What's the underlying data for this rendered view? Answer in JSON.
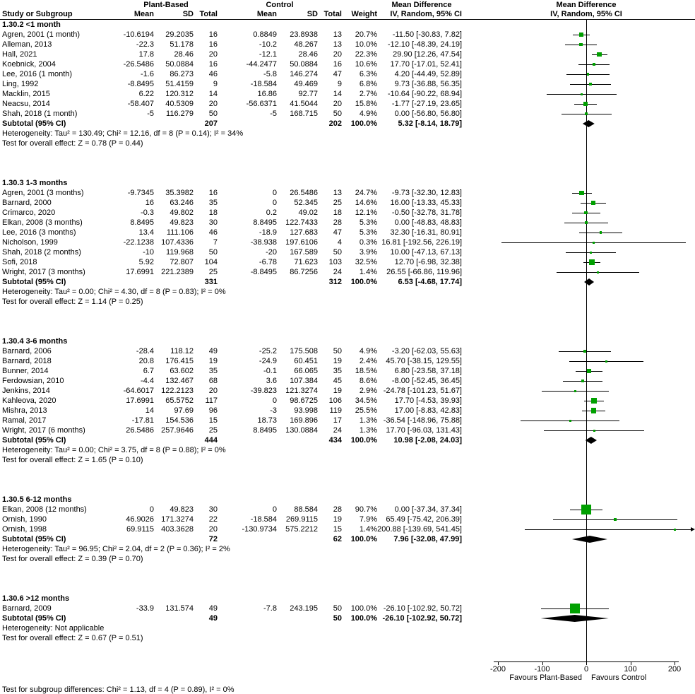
{
  "header": {
    "col_study": "Study or Subgroup",
    "group1": "Plant-Based",
    "group2": "Control",
    "mean": "Mean",
    "sd": "SD",
    "total": "Total",
    "weight": "Weight",
    "md": "Mean Difference",
    "method": "IV, Random, 95% CI"
  },
  "strings": {
    "subtotal_label": "Subtotal (95% CI)"
  },
  "axis": {
    "ticks": [
      -200,
      -100,
      0,
      100,
      200
    ],
    "min": -200,
    "max": 200,
    "favours_left": "Favours Plant-Based",
    "favours_right": "Favours Control"
  },
  "footer": "Test for subgroup differences: Chi² = 1.13, df = 4 (P = 0.89), I² = 0%",
  "colors": {
    "square": "#00a000",
    "diamond": "#000000"
  },
  "chart_data": {
    "type": "forest",
    "effect_measure": "Mean Difference, IV, Random, 95% CI",
    "columns_order": [
      "study",
      "mean1",
      "sd1",
      "n1",
      "mean2",
      "sd2",
      "n2",
      "weight",
      "est",
      "lo",
      "hi"
    ],
    "subgroups": [
      {
        "title": "1.30.2 <1 month",
        "studies": [
          [
            "Agren, 2001 (1 month)",
            "-10.6194",
            "29.2035",
            "16",
            "0.8849",
            "23.8938",
            "13",
            "20.7%",
            -11.5,
            -30.83,
            7.82
          ],
          [
            "Alleman, 2013",
            "-22.3",
            "51.178",
            "16",
            "-10.2",
            "48.267",
            "13",
            "10.0%",
            -12.1,
            -48.39,
            24.19
          ],
          [
            "Hall, 2021",
            "17.8",
            "28.46",
            "20",
            "-12.1",
            "28.46",
            "20",
            "22.3%",
            29.9,
            12.26,
            47.54
          ],
          [
            "Koebnick, 2004",
            "-26.5486",
            "50.0884",
            "16",
            "-44.2477",
            "50.0884",
            "16",
            "10.6%",
            17.7,
            -17.01,
            52.41
          ],
          [
            "Lee, 2016 (1 month)",
            "-1.6",
            "86.273",
            "46",
            "-5.8",
            "146.274",
            "47",
            "6.3%",
            4.2,
            -44.49,
            52.89
          ],
          [
            "Ling, 1992",
            "-8.8495",
            "51.4159",
            "9",
            "-18.584",
            "49.469",
            "9",
            "6.8%",
            9.73,
            -36.88,
            56.35
          ],
          [
            "Macklin, 2015",
            "6.22",
            "120.312",
            "14",
            "16.86",
            "92.77",
            "14",
            "2.7%",
            -10.64,
            -90.22,
            68.94
          ],
          [
            "Neacsu, 2014",
            "-58.407",
            "40.5309",
            "20",
            "-56.6371",
            "41.5044",
            "20",
            "15.8%",
            -1.77,
            -27.19,
            23.65
          ],
          [
            "Shah, 2018 (1 month)",
            "-5",
            "116.279",
            "50",
            "-5",
            "168.715",
            "50",
            "4.9%",
            0,
            -56.8,
            56.8
          ]
        ],
        "subtotal": {
          "n1": "207",
          "n2": "202",
          "weight": "100.0%",
          "est": 5.32,
          "lo": -8.14,
          "hi": 18.79
        },
        "heterogeneity": "Heterogeneity: Tau² = 130.49; Chi² = 12.16, df = 8 (P = 0.14); I² = 34%",
        "test": "Test for overall effect: Z = 0.78 (P = 0.44)"
      },
      {
        "title": "1.30.3 1-3 months",
        "studies": [
          [
            "Agren, 2001 (3 months)",
            "-9.7345",
            "35.3982",
            "16",
            "0",
            "26.5486",
            "13",
            "24.7%",
            -9.73,
            -32.3,
            12.83
          ],
          [
            "Barnard, 2000",
            "16",
            "63.246",
            "35",
            "0",
            "52.345",
            "25",
            "14.6%",
            16,
            -13.33,
            45.33
          ],
          [
            "Crimarco, 2020",
            "-0.3",
            "49.802",
            "18",
            "0.2",
            "49.02",
            "18",
            "12.1%",
            -0.5,
            -32.78,
            31.78
          ],
          [
            "Elkan, 2008 (3 months)",
            "8.8495",
            "49.823",
            "30",
            "8.8495",
            "122.7433",
            "28",
            "5.3%",
            0,
            -48.83,
            48.83
          ],
          [
            "Lee, 2016 (3 months)",
            "13.4",
            "111.106",
            "46",
            "-18.9",
            "127.683",
            "47",
            "5.3%",
            32.3,
            -16.31,
            80.91
          ],
          [
            "Nicholson, 1999",
            "-22.1238",
            "107.4336",
            "7",
            "-38.938",
            "197.6106",
            "4",
            "0.3%",
            16.81,
            -192.56,
            226.19
          ],
          [
            "Shah, 2018 (2 months)",
            "-10",
            "119.968",
            "50",
            "-20",
            "167.589",
            "50",
            "3.9%",
            10,
            -47.13,
            67.13
          ],
          [
            "Sofi, 2018",
            "5.92",
            "72.807",
            "104",
            "-6.78",
            "71.623",
            "103",
            "32.5%",
            12.7,
            -6.98,
            32.38
          ],
          [
            "Wright, 2017 (3 months)",
            "17.6991",
            "221.2389",
            "25",
            "-8.8495",
            "86.7256",
            "24",
            "1.4%",
            26.55,
            -66.86,
            119.96
          ]
        ],
        "subtotal": {
          "n1": "331",
          "n2": "312",
          "weight": "100.0%",
          "est": 6.53,
          "lo": -4.68,
          "hi": 17.74
        },
        "heterogeneity": "Heterogeneity: Tau² = 0.00; Chi² = 4.30, df = 8 (P = 0.83); I² = 0%",
        "test": "Test for overall effect: Z = 1.14 (P = 0.25)"
      },
      {
        "title": "1.30.4 3-6 months",
        "studies": [
          [
            "Barnard, 2006",
            "-28.4",
            "118.12",
            "49",
            "-25.2",
            "175.508",
            "50",
            "4.9%",
            -3.2,
            -62.03,
            55.63
          ],
          [
            "Barnard, 2018",
            "20.8",
            "176.415",
            "19",
            "-24.9",
            "60.451",
            "19",
            "2.4%",
            45.7,
            -38.15,
            129.55
          ],
          [
            "Bunner, 2014",
            "6.7",
            "63.602",
            "35",
            "-0.1",
            "66.065",
            "35",
            "18.5%",
            6.8,
            -23.58,
            37.18
          ],
          [
            "Ferdowsian, 2010",
            "-4.4",
            "132.467",
            "68",
            "3.6",
            "107.384",
            "45",
            "8.6%",
            -8,
            -52.45,
            36.45
          ],
          [
            "Jenkins, 2014",
            "-64.6017",
            "122.2123",
            "20",
            "-39.823",
            "121.3274",
            "19",
            "2.9%",
            -24.78,
            -101.23,
            51.67
          ],
          [
            "Kahleova, 2020",
            "17.6991",
            "65.5752",
            "117",
            "0",
            "98.6725",
            "106",
            "34.5%",
            17.7,
            -4.53,
            39.93
          ],
          [
            "Mishra, 2013",
            "14",
            "97.69",
            "96",
            "-3",
            "93.998",
            "119",
            "25.5%",
            17,
            -8.83,
            42.83
          ],
          [
            "Ramal, 2017",
            "-17.81",
            "154.536",
            "15",
            "18.73",
            "169.896",
            "17",
            "1.3%",
            -36.54,
            -148.96,
            75.88
          ],
          [
            "Wright, 2017 (6 months)",
            "26.5486",
            "257.9646",
            "25",
            "8.8495",
            "130.0884",
            "24",
            "1.3%",
            17.7,
            -96.03,
            131.43
          ]
        ],
        "subtotal": {
          "n1": "444",
          "n2": "434",
          "weight": "100.0%",
          "est": 10.98,
          "lo": -2.08,
          "hi": 24.03
        },
        "heterogeneity": "Heterogeneity: Tau² = 0.00; Chi² = 3.75, df = 8 (P = 0.88); I² = 0%",
        "test": "Test for overall effect: Z = 1.65 (P = 0.10)"
      },
      {
        "title": "1.30.5 6-12 months",
        "studies": [
          [
            "Elkan, 2008 (12 months)",
            "0",
            "49.823",
            "30",
            "0",
            "88.584",
            "28",
            "90.7%",
            0,
            -37.34,
            37.34
          ],
          [
            "Ornish, 1990",
            "46.9026",
            "171.3274",
            "22",
            "-18.584",
            "269.9115",
            "19",
            "7.9%",
            65.49,
            -75.42,
            206.39
          ],
          [
            "Ornish, 1998",
            "69.9115",
            "403.3628",
            "20",
            "-130.9734",
            "575.2212",
            "15",
            "1.4%",
            200.88,
            -139.69,
            541.45
          ]
        ],
        "subtotal": {
          "n1": "72",
          "n2": "62",
          "weight": "100.0%",
          "est": 7.96,
          "lo": -32.08,
          "hi": 47.99
        },
        "heterogeneity": "Heterogeneity: Tau² = 96.95; Chi² = 2.04, df = 2 (P = 0.36); I² = 2%",
        "test": "Test for overall effect: Z = 0.39 (P = 0.70)"
      },
      {
        "title": "1.30.6 >12 months",
        "studies": [
          [
            "Barnard, 2009",
            "-33.9",
            "131.574",
            "49",
            "-7.8",
            "243.195",
            "50",
            "100.0%",
            -26.1,
            -102.92,
            50.72
          ]
        ],
        "subtotal": {
          "n1": "49",
          "n2": "50",
          "weight": "100.0%",
          "est": -26.1,
          "lo": -102.92,
          "hi": 50.72
        },
        "heterogeneity": "Heterogeneity: Not applicable",
        "test": "Test for overall effect: Z = 0.67 (P = 0.51)"
      }
    ]
  }
}
